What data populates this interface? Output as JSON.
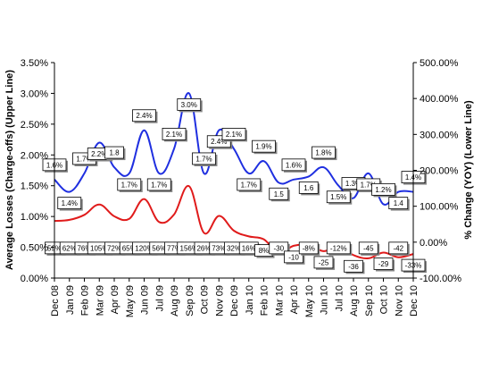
{
  "chart_data": {
    "type": "line",
    "categories": [
      "Dec 08",
      "Jan 09",
      "Feb 09",
      "Mar 09",
      "Apr 09",
      "May 09",
      "Jun 09",
      "Jul 09",
      "Aug 09",
      "Sep 09",
      "Oct 09",
      "Nov 09",
      "Dec 09",
      "Jan 10",
      "Feb 10",
      "Mar 10",
      "Apr 10",
      "May 10",
      "Jun 10",
      "Jul 10",
      "Aug 10",
      "Sep 10",
      "Oct 10",
      "Nov 10",
      "Dec 10"
    ],
    "ylabel": "Average Losses (Charge-offs) (Upper Line)",
    "y2label": "% Change (YOY) (Lower Line)",
    "ylim": [
      0,
      3.5
    ],
    "y2lim": [
      -100,
      500
    ],
    "yticks": [
      "0.00%",
      "0.50%",
      "1.00%",
      "1.50%",
      "2.00%",
      "2.50%",
      "3.00%",
      "3.50%"
    ],
    "y2ticks": [
      "-100.00%",
      "0.00%",
      "100.00%",
      "200.00%",
      "300.00%",
      "400.00%",
      "500.00%"
    ],
    "series": [
      {
        "axis": "left",
        "color": "#1f2fe0",
        "values": [
          1.6,
          1.4,
          1.7,
          2.2,
          1.8,
          1.7,
          2.4,
          1.7,
          2.1,
          3.0,
          1.7,
          2.4,
          2.1,
          1.7,
          1.9,
          1.55,
          1.6,
          1.65,
          1.8,
          1.5,
          1.3,
          1.7,
          1.2,
          1.4,
          1.4
        ],
        "labels": [
          "1.6%",
          "1.4%",
          "1.7%",
          "2.2%",
          "1.8",
          "1.7%",
          "2.4%",
          "1.7%",
          "2.1%",
          "3.0%",
          "1.7%",
          "2.4%",
          "2.1%",
          "1.7%",
          "1.9%",
          "1.5",
          "1.6%",
          "1.6",
          "1.8%",
          "1.5%",
          "1.3%",
          "1.7%",
          "1.2%",
          "1.4",
          "1.4%"
        ]
      },
      {
        "axis": "right",
        "color": "#e01b1b",
        "values": [
          59,
          62,
          76,
          105,
          72,
          65,
          120,
          56,
          77,
          156,
          26,
          73,
          32,
          16,
          8,
          -30,
          -10,
          -8,
          -25,
          -12,
          -36,
          -45,
          -29,
          -42,
          -33
        ],
        "labels": [
          "59%",
          "62%",
          "76%",
          "105%",
          "72%",
          "65%",
          "120%",
          "56%",
          "77%",
          "156%",
          "26%",
          "73%",
          "32%",
          "16%",
          "8%",
          "-30",
          "-10",
          "-8%",
          "-25",
          "-12%",
          "-36",
          "-45",
          "-29",
          "-42",
          "-33%"
        ]
      }
    ]
  }
}
